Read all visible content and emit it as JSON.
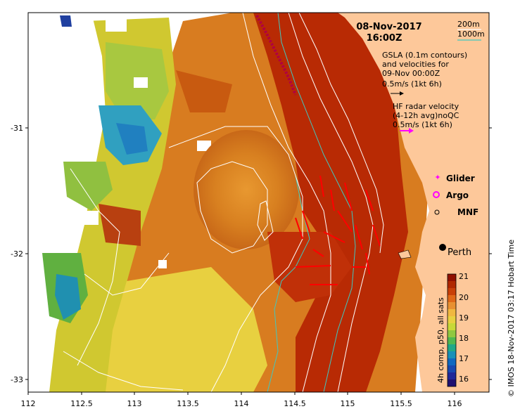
{
  "title": {
    "date": "08-Nov-2017",
    "time": "16:00Z"
  },
  "bathy_legend": {
    "contour1": "200m",
    "contour2": "1000m",
    "color1": "#ffffff",
    "color2": "#40c8c0"
  },
  "gsla_legend": {
    "line1": "GSLA (0.1m contours)",
    "line2": "and velocities for",
    "line3": "09-Nov 00:00Z",
    "scale": "0.5m/s (1kt 6h)"
  },
  "hf_legend": {
    "line1": "HF radar velocity",
    "line2": "(4-12h avg)noQC",
    "scale": "0.5m/s (1kt 6h)",
    "arrow_color": "#ff00ff"
  },
  "markers": {
    "glider": "Glider",
    "argo": "Argo",
    "mnf": "MNF"
  },
  "city": "Perth",
  "colorbar": {
    "label": "4h comp, p50, all sats",
    "ticks": [
      "21",
      "20",
      "19",
      "18",
      "17",
      "16"
    ]
  },
  "credit": "© IMOS 18-Nov-2017 03:17 Hobart Time",
  "x_ticks": [
    "112",
    "112.5",
    "113",
    "113.5",
    "114",
    "114.5",
    "115",
    "115.5",
    "116"
  ],
  "y_ticks": [
    "-31",
    "-32",
    "-33"
  ],
  "colors": {
    "land": "#fdc89a",
    "warm": "#b02000",
    "cold": "#1040a0",
    "current_arrows": "#ff0000"
  }
}
